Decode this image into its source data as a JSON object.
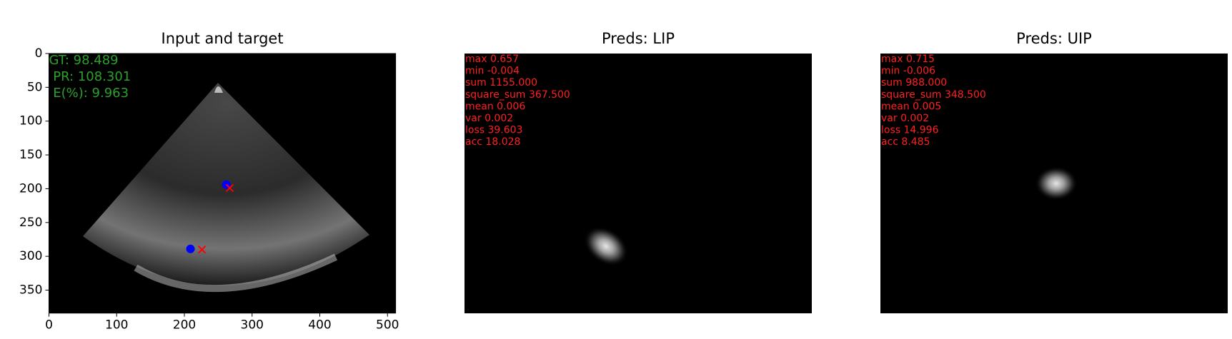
{
  "chart_data": [
    {
      "type": "scatter",
      "title": "Input and target",
      "xlim": [
        0,
        512
      ],
      "ylim": [
        384,
        0
      ],
      "xticks": [
        0,
        100,
        200,
        300,
        400,
        500
      ],
      "yticks": [
        0,
        50,
        100,
        150,
        200,
        250,
        300,
        350
      ],
      "series": [
        {
          "color": "#0000ff",
          "marker": "o",
          "x": [
            262,
            209
          ],
          "values": [
            194,
            289
          ]
        },
        {
          "color": "#ff0000",
          "marker": "x",
          "x": [
            267,
            226
          ],
          "values": [
            199,
            290
          ]
        }
      ],
      "annotations": [
        "GT: 98.489",
        " PR: 108.301",
        " E(%): 9.963"
      ],
      "annotation_color": "#2ca02c"
    },
    {
      "type": "image",
      "title": "Preds: LIP",
      "annotations": [
        "max 0.657",
        "min -0.004",
        "sum 1155.000",
        "square_sum 367.500",
        "mean 0.006",
        "var 0.002",
        "loss 39.603",
        "acc 18.028"
      ],
      "annotation_color": "#ff2020"
    },
    {
      "type": "image",
      "title": "Preds: UIP",
      "annotations": [
        "max 0.715",
        "min -0.006",
        "sum 988.000",
        "square_sum 348.500",
        "mean 0.005",
        "var 0.002",
        "loss 14.996",
        "acc 8.485"
      ],
      "annotation_color": "#ff2020"
    }
  ]
}
